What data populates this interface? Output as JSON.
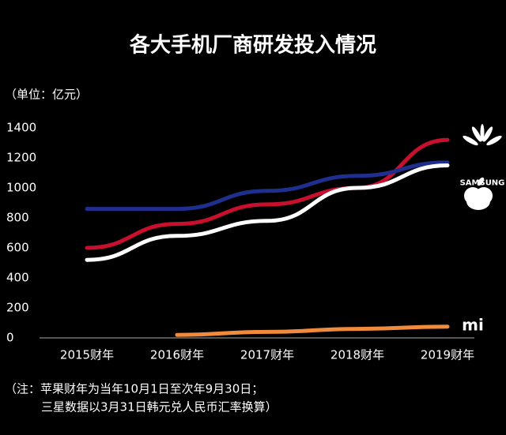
{
  "chart_data": {
    "type": "line",
    "title": "各大手机厂商研发投入情况",
    "unit_label": "（单位：亿元）",
    "categories": [
      "2015财年",
      "2016财年",
      "2017财年",
      "2018财年",
      "2019财年"
    ],
    "series": [
      {
        "color": "#c8102e",
        "values": [
          600,
          760,
          890,
          1000,
          1320
        ]
      },
      {
        "name": "SAMSUNG",
        "color": "#1f2f8f",
        "values": [
          860,
          860,
          980,
          1080,
          1170
        ]
      },
      {
        "color": "#ffffff",
        "values": [
          520,
          680,
          780,
          1000,
          1150
        ]
      },
      {
        "color": "#f08a3c",
        "values": [
          null,
          20,
          40,
          60,
          75
        ]
      }
    ],
    "ylim": [
      0,
      1400
    ],
    "yticks": [
      0,
      200,
      400,
      600,
      800,
      1000,
      1200,
      1400
    ],
    "notes": [
      "（注：苹果财年为当年10月1日至次年9月30日；",
      "三星数据以3月31日韩元兑人民币汇率换算）"
    ]
  }
}
